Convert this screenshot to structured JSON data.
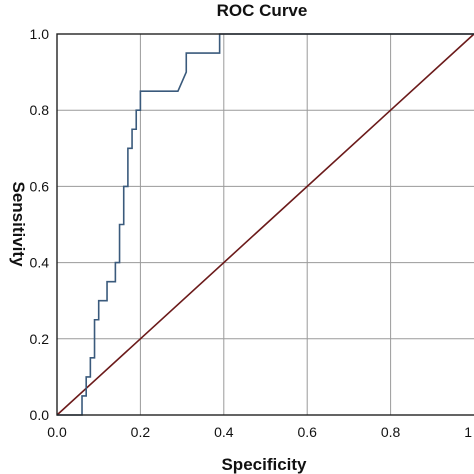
{
  "chart_data": {
    "type": "line",
    "title": "ROC Curve",
    "xlabel": "Specificity",
    "ylabel": "Sensitivity",
    "xlim": [
      0,
      1
    ],
    "ylim": [
      0,
      1
    ],
    "x_ticks": [
      "0.0",
      "0.2",
      "0.4",
      "0.6",
      "0.8",
      "1"
    ],
    "y_ticks": [
      "0.0",
      "0.2",
      "0.4",
      "0.6",
      "0.8",
      "1.0"
    ],
    "grid": true,
    "colors": {
      "roc": "#3a5a7c",
      "reference": "#6b1a1a",
      "grid": "#9a9a9a",
      "frame": "#222222"
    },
    "series": [
      {
        "x": [
          0.0,
          0.06,
          0.06,
          0.07,
          0.07,
          0.08,
          0.08,
          0.09,
          0.09,
          0.1,
          0.1,
          0.12,
          0.12,
          0.14,
          0.14,
          0.15,
          0.15,
          0.16,
          0.16,
          0.17,
          0.17,
          0.18,
          0.18,
          0.19,
          0.19,
          0.2,
          0.2,
          0.29,
          0.31,
          0.31,
          0.39,
          0.39,
          1.0
        ],
        "y": [
          0.0,
          0.0,
          0.05,
          0.05,
          0.1,
          0.1,
          0.15,
          0.15,
          0.25,
          0.25,
          0.3,
          0.3,
          0.35,
          0.35,
          0.4,
          0.4,
          0.5,
          0.5,
          0.6,
          0.6,
          0.7,
          0.7,
          0.75,
          0.75,
          0.8,
          0.8,
          0.85,
          0.85,
          0.9,
          0.95,
          0.95,
          1.0,
          1.0
        ]
      },
      {
        "x": [
          0.0,
          1.0
        ],
        "y": [
          0.0,
          1.0
        ]
      }
    ]
  }
}
